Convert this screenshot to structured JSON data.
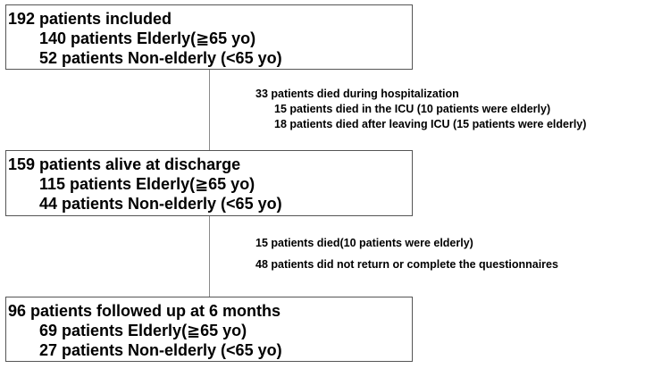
{
  "boxes": [
    {
      "lines": [
        "192 patients included",
        "140 patients Elderly(≧65 yo)",
        "52 patients Non-elderly (<65 yo)"
      ]
    },
    {
      "lines": [
        "159 patients alive at discharge",
        "115 patients Elderly(≧65 yo)",
        "44 patients Non-elderly (<65 yo)"
      ]
    },
    {
      "lines": [
        "96 patients followed up at 6 months",
        "69 patients Elderly(≧65 yo)",
        "27 patients Non-elderly (<65 yo)"
      ]
    }
  ],
  "exclusions": [
    {
      "heading": "33 patients died during hospitalization",
      "details": [
        "15 patients died in the ICU (10 patients were elderly)",
        "18 patients died after leaving ICU (15 patients were elderly)"
      ]
    },
    {
      "lines": [
        "15 patients died(10 patients were elderly)",
        "48 patients did not return or complete the questionnaires"
      ]
    }
  ]
}
